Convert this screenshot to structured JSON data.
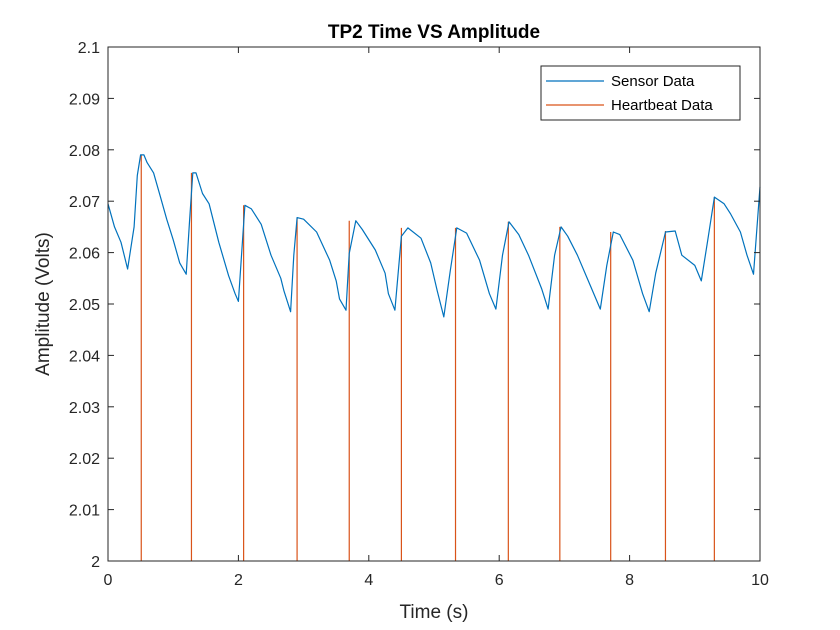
{
  "chart_data": {
    "type": "line",
    "title": "TP2 Time VS Amplitude",
    "xlabel": "Time (s)",
    "ylabel": "Amplitude (Volts)",
    "xlim": [
      0,
      10
    ],
    "ylim": [
      2,
      2.1
    ],
    "x_ticks": [
      0,
      2,
      4,
      6,
      8,
      10
    ],
    "x_tick_labels": [
      "0",
      "2",
      "4",
      "6",
      "8",
      "10"
    ],
    "y_ticks": [
      2,
      2.01,
      2.02,
      2.03,
      2.04,
      2.05,
      2.06,
      2.07,
      2.08,
      2.09,
      2.1
    ],
    "y_tick_labels": [
      "2",
      "2.01",
      "2.02",
      "2.03",
      "2.04",
      "2.05",
      "2.06",
      "2.07",
      "2.08",
      "2.09",
      "2.1"
    ],
    "grid": false,
    "legend_position": "top-right",
    "series": [
      {
        "name": "Sensor Data",
        "color": "#0072BD",
        "x": [
          0,
          0.1,
          0.2,
          0.3,
          0.4,
          0.45,
          0.5,
          0.55,
          0.6,
          0.7,
          0.8,
          0.9,
          1.0,
          1.1,
          1.2,
          1.25,
          1.3,
          1.35,
          1.45,
          1.55,
          1.7,
          1.85,
          1.95,
          2.0,
          2.05,
          2.1,
          2.2,
          2.35,
          2.5,
          2.65,
          2.7,
          2.8,
          2.85,
          2.9,
          3.0,
          3.2,
          3.4,
          3.5,
          3.55,
          3.65,
          3.7,
          3.8,
          3.9,
          4.1,
          4.25,
          4.3,
          4.4,
          4.5,
          4.6,
          4.8,
          4.95,
          5.05,
          5.15,
          5.25,
          5.35,
          5.5,
          5.7,
          5.85,
          5.95,
          6.05,
          6.15,
          6.3,
          6.45,
          6.65,
          6.75,
          6.85,
          6.95,
          7.05,
          7.2,
          7.4,
          7.55,
          7.65,
          7.75,
          7.85,
          8.05,
          8.2,
          8.3,
          8.4,
          8.55,
          8.7,
          8.8,
          9.0,
          9.1,
          9.2,
          9.3,
          9.45,
          9.55,
          9.7,
          9.8,
          9.9,
          10.0
        ],
        "y": [
          2.0695,
          2.065,
          2.062,
          2.0568,
          2.065,
          2.075,
          2.079,
          2.079,
          2.0775,
          2.0755,
          2.071,
          2.0665,
          2.0625,
          2.058,
          2.0558,
          2.066,
          2.0755,
          2.0755,
          2.0715,
          2.0695,
          2.062,
          2.0555,
          2.052,
          2.0505,
          2.06,
          2.0692,
          2.0685,
          2.0655,
          2.0595,
          2.055,
          2.0525,
          2.0485,
          2.0595,
          2.0668,
          2.0665,
          2.064,
          2.0585,
          2.0545,
          2.051,
          2.0488,
          2.0598,
          2.0662,
          2.0645,
          2.0605,
          2.056,
          2.052,
          2.0488,
          2.0632,
          2.0648,
          2.0628,
          2.058,
          2.0525,
          2.0475,
          2.0565,
          2.0648,
          2.0638,
          2.0585,
          2.052,
          2.049,
          2.0595,
          2.066,
          2.0635,
          2.0595,
          2.053,
          2.049,
          2.0595,
          2.065,
          2.0632,
          2.0595,
          2.0535,
          2.049,
          2.0575,
          2.064,
          2.0635,
          2.0585,
          2.052,
          2.0485,
          2.056,
          2.064,
          2.0642,
          2.0595,
          2.0575,
          2.0545,
          2.0625,
          2.0708,
          2.0695,
          2.0675,
          2.064,
          2.0595,
          2.0558,
          2.0728
        ]
      },
      {
        "name": "Heartbeat Data",
        "color": "#D95319",
        "type": "stem",
        "x": [
          0.51,
          1.28,
          2.08,
          2.9,
          3.7,
          4.5,
          5.33,
          6.14,
          6.93,
          7.71,
          8.55,
          9.3
        ],
        "y": [
          2.079,
          2.0755,
          2.0692,
          2.0668,
          2.0662,
          2.0648,
          2.0648,
          2.066,
          2.065,
          2.064,
          2.0642,
          2.0708
        ]
      }
    ]
  }
}
